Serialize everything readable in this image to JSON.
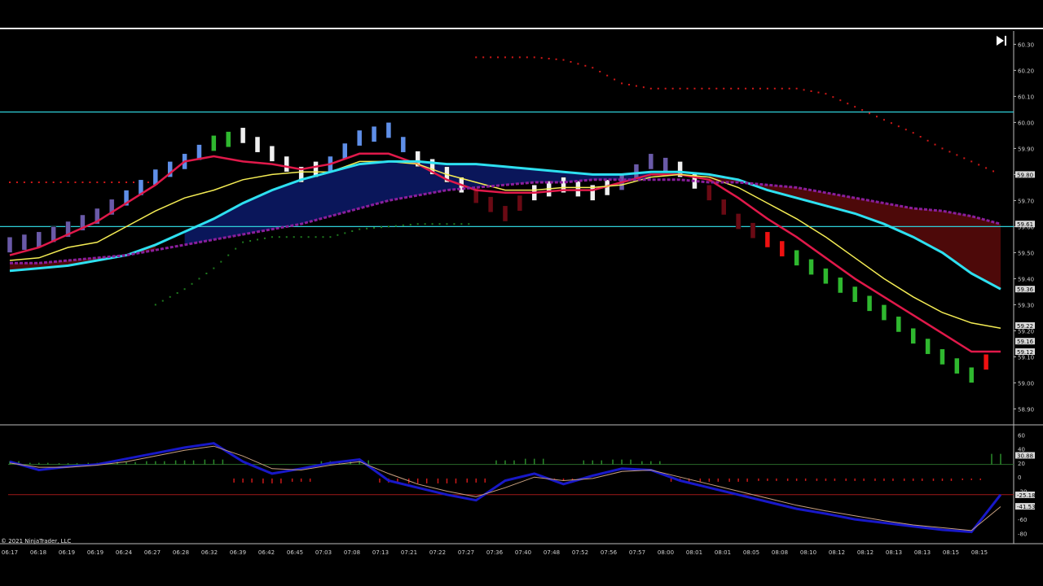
{
  "copyright": "© 2021 NinjaTrader, LLC",
  "colors": {
    "background": "#000000",
    "ema_red": "#e0194a",
    "ema_yellow": "#f4ec54",
    "ema_cyan": "#2ee0f0",
    "ema_purple": "#8a1e9c",
    "stop_dots": "#d01818",
    "support_dots": "#1e7a1e",
    "level_line": "#2ecfd8",
    "cloud_blue": "#0c1a6a",
    "cloud_red": "#5a0a0a",
    "bar_green": "#2fb82f",
    "bar_blue": "#5f8fe8",
    "bar_purple": "#6a5aa8",
    "bar_white": "#f0f0f0",
    "bar_darkred": "#6a0a14",
    "bar_red": "#ee1111",
    "bar_magenta": "#ee22cc",
    "macd_blue": "#1818c8",
    "macd_signal": "#c8a080",
    "hist_green": "#2a8a2a",
    "hist_red": "#cc1a1a"
  },
  "price_axis": {
    "ticks": [
      "60.30",
      "60.20",
      "60.10",
      "60.00",
      "59.90",
      "59.80",
      "59.70",
      "59.60",
      "59.50",
      "59.40",
      "59.30",
      "59.20",
      "59.10",
      "59.00",
      "58.90"
    ],
    "tags": [
      "59.80",
      "59.61",
      "59.36",
      "59.22",
      "59.16",
      "59.12"
    ]
  },
  "osc_axis": {
    "ticks": [
      "60",
      "40",
      "20",
      "0",
      "-20",
      "-40",
      "-60",
      "-80"
    ],
    "tags": [
      "30.88",
      "-25.18",
      "-41.53"
    ]
  },
  "time_axis": {
    "labels": [
      "06:17",
      "06:18",
      "06:19",
      "06:19",
      "06:24",
      "06:27",
      "06:28",
      "06:32",
      "06:39",
      "06:42",
      "06:45",
      "07:03",
      "07:08",
      "07:13",
      "07:21",
      "07:22",
      "07:27",
      "07:36",
      "07:40",
      "07:48",
      "07:52",
      "07:56",
      "07:57",
      "08:00",
      "08:01",
      "08:01",
      "08:05",
      "08:08",
      "08:10",
      "08:12",
      "08:12",
      "08:13",
      "08:13",
      "08:15",
      "08:15"
    ]
  },
  "chart_data": [
    {
      "type": "line",
      "panel": "price",
      "x": [
        "06:17",
        "06:18",
        "06:19",
        "06:19",
        "06:24",
        "06:27",
        "06:28",
        "06:32",
        "06:39",
        "06:42",
        "06:45",
        "07:03",
        "07:08",
        "07:13",
        "07:21",
        "07:22",
        "07:27",
        "07:36",
        "07:40",
        "07:48",
        "07:52",
        "07:56",
        "07:57",
        "08:00",
        "08:01",
        "08:01",
        "08:05",
        "08:08",
        "08:10",
        "08:12",
        "08:12",
        "08:13",
        "08:13",
        "08:15",
        "08:15"
      ],
      "ylim": [
        58.87,
        60.32
      ],
      "close": [
        59.53,
        59.55,
        59.59,
        59.64,
        59.71,
        59.79,
        59.85,
        59.92,
        59.95,
        59.88,
        59.8,
        59.84,
        59.94,
        59.97,
        59.86,
        59.8,
        59.72,
        59.65,
        59.73,
        59.76,
        59.73,
        59.77,
        59.85,
        59.82,
        59.73,
        59.62,
        59.55,
        59.48,
        59.41,
        59.34,
        59.27,
        59.18,
        59.1,
        59.03,
        59.13
      ],
      "series": [
        {
          "values": [
            59.49,
            59.52,
            59.57,
            59.62,
            59.69,
            59.76,
            59.85,
            59.87,
            59.85,
            59.84,
            59.82,
            59.84,
            59.88,
            59.88,
            59.84,
            59.78,
            59.74,
            59.73,
            59.73,
            59.74,
            59.74,
            59.77,
            59.8,
            59.8,
            59.78,
            59.71,
            59.63,
            59.56,
            59.48,
            59.4,
            59.33,
            59.26,
            59.19,
            59.12,
            59.12
          ]
        },
        {
          "values": [
            59.47,
            59.48,
            59.52,
            59.54,
            59.6,
            59.66,
            59.71,
            59.74,
            59.78,
            59.8,
            59.81,
            59.81,
            59.85,
            59.85,
            59.84,
            59.8,
            59.77,
            59.74,
            59.74,
            59.75,
            59.75,
            59.76,
            59.79,
            59.8,
            59.79,
            59.75,
            59.69,
            59.63,
            59.56,
            59.48,
            59.4,
            59.33,
            59.27,
            59.23,
            59.21
          ]
        },
        {
          "values": [
            59.43,
            59.44,
            59.45,
            59.47,
            59.49,
            59.53,
            59.58,
            59.63,
            59.69,
            59.74,
            59.78,
            59.81,
            59.84,
            59.85,
            59.85,
            59.84,
            59.84,
            59.83,
            59.82,
            59.81,
            59.8,
            59.8,
            59.81,
            59.81,
            59.8,
            59.78,
            59.74,
            59.71,
            59.68,
            59.65,
            59.61,
            59.56,
            59.5,
            59.42,
            59.36
          ]
        },
        {
          "values": [
            59.46,
            59.46,
            59.47,
            59.48,
            59.49,
            59.51,
            59.53,
            59.55,
            59.57,
            59.59,
            59.61,
            59.64,
            59.67,
            59.7,
            59.72,
            59.74,
            59.75,
            59.76,
            59.77,
            59.77,
            59.78,
            59.78,
            59.78,
            59.78,
            59.77,
            59.77,
            59.76,
            59.75,
            59.73,
            59.71,
            59.69,
            59.67,
            59.66,
            59.64,
            59.61
          ]
        }
      ],
      "stop_dots": [
        59.77,
        59.77,
        59.77,
        59.77,
        59.77,
        59.77,
        null,
        null,
        null,
        null,
        null,
        null,
        null,
        null,
        null,
        null,
        60.25,
        60.25,
        60.25,
        60.24,
        60.21,
        60.15,
        60.13,
        60.13,
        60.13,
        60.13,
        60.13,
        60.13,
        60.11,
        60.06,
        60.01,
        59.96,
        59.9,
        59.85,
        59.8
      ],
      "support_dots": [
        null,
        null,
        null,
        null,
        null,
        59.3,
        59.36,
        59.44,
        59.54,
        59.56,
        59.56,
        59.56,
        59.59,
        59.6,
        59.61,
        59.61,
        59.61,
        null,
        null,
        null,
        null,
        null,
        null,
        null,
        null,
        null,
        null,
        null,
        null,
        null,
        null,
        null,
        null,
        null,
        null
      ],
      "levels": [
        60.04,
        59.6
      ]
    },
    {
      "type": "line",
      "panel": "oscillator",
      "x": [
        "06:17",
        "06:18",
        "06:19",
        "06:19",
        "06:24",
        "06:27",
        "06:28",
        "06:32",
        "06:39",
        "06:42",
        "06:45",
        "07:03",
        "07:08",
        "07:13",
        "07:21",
        "07:22",
        "07:27",
        "07:36",
        "07:40",
        "07:48",
        "07:52",
        "07:56",
        "07:57",
        "08:00",
        "08:01",
        "08:01",
        "08:05",
        "08:08",
        "08:10",
        "08:12",
        "08:12",
        "08:13",
        "08:13",
        "08:15",
        "08:15"
      ],
      "ylim": [
        -90,
        65
      ],
      "levels": [
        18,
        -25
      ],
      "series": [
        {
          "values": [
            22,
            10,
            15,
            18,
            26,
            34,
            42,
            48,
            22,
            5,
            12,
            20,
            25,
            -5,
            -15,
            -25,
            -33,
            -5,
            5,
            -10,
            2,
            12,
            10,
            -5,
            -15,
            -25,
            -35,
            -45,
            -52,
            -60,
            -65,
            -70,
            -75,
            -78,
            -25
          ]
        },
        {
          "values": [
            20,
            14,
            14,
            17,
            22,
            30,
            38,
            44,
            30,
            12,
            10,
            17,
            22,
            5,
            -10,
            -20,
            -28,
            -15,
            0,
            -5,
            -2,
            8,
            10,
            0,
            -10,
            -20,
            -30,
            -40,
            -48,
            -55,
            -62,
            -68,
            -72,
            -76,
            -42
          ]
        }
      ],
      "histogram": [
        8,
        4,
        3,
        4,
        6,
        8,
        10,
        12,
        -10,
        -12,
        -8,
        8,
        10,
        -10,
        -12,
        -12,
        -10,
        10,
        14,
        -6,
        10,
        12,
        8,
        -8,
        -8,
        -8,
        -6,
        -6,
        -6,
        -6,
        -6,
        -6,
        -6,
        -4,
        26
      ]
    }
  ]
}
